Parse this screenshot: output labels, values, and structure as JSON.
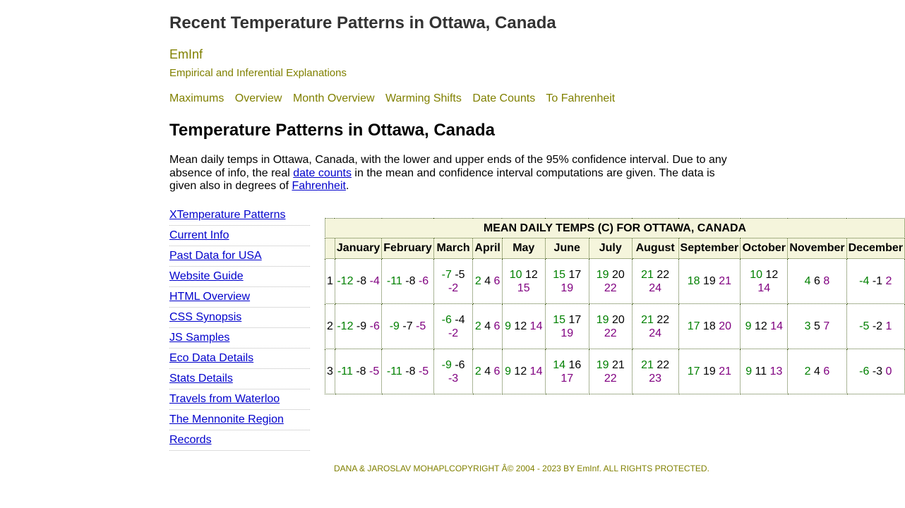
{
  "site": {
    "title": "Recent Temperature Patterns in Ottawa, Canada",
    "brand": "EmInf",
    "tagline": "Empirical and Inferential Explanations"
  },
  "topnav": [
    "Maximums",
    "Overview",
    "Month Overview",
    "Warming Shifts",
    "Date Counts",
    "To Fahrenheit"
  ],
  "main": {
    "heading": "Temperature Patterns in Ottawa, Canada",
    "intro_part1": "Mean daily temps in Ottawa, Canada, with the lower and upper ends of the 95% confidence interval. Due to any absence of info, the real ",
    "intro_link1": "date counts",
    "intro_part2": " in the mean and confidence interval computations are given. The data is given also in degrees of ",
    "intro_link2": "Fahrenheit",
    "intro_part3": "."
  },
  "sidenav": [
    "XTemperature Patterns",
    "Current Info",
    "Past Data for USA",
    "Website Guide",
    "HTML Overview",
    "CSS Synopsis",
    "JS Samples",
    "Eco Data Details",
    "Stats Details",
    "Travels from Waterloo",
    "The Mennonite Region",
    "Records"
  ],
  "table": {
    "caption": "MEAN DAILY TEMPS (C) FOR OTTAWA, CANADA",
    "months": [
      "January",
      "February",
      "March",
      "April",
      "May",
      "June",
      "July",
      "August",
      "September",
      "October",
      "November",
      "December"
    ],
    "rows": [
      {
        "day": "1",
        "cells": [
          [
            "-12",
            "-8",
            "-4"
          ],
          [
            "-11",
            "-8",
            "-6"
          ],
          [
            "-7",
            "-5",
            "-2"
          ],
          [
            "2",
            "4",
            "6"
          ],
          [
            "10",
            "12",
            "15"
          ],
          [
            "15",
            "17",
            "19"
          ],
          [
            "19",
            "20",
            "22"
          ],
          [
            "21",
            "22",
            "24"
          ],
          [
            "18",
            "19",
            "21"
          ],
          [
            "10",
            "12",
            "14"
          ],
          [
            "4",
            "6",
            "8"
          ],
          [
            "-4",
            "-1",
            "2"
          ]
        ]
      },
      {
        "day": "2",
        "cells": [
          [
            "-12",
            "-9",
            "-6"
          ],
          [
            "-9",
            "-7",
            "-5"
          ],
          [
            "-6",
            "-4",
            "-2"
          ],
          [
            "2",
            "4",
            "6"
          ],
          [
            "9",
            "12",
            "14"
          ],
          [
            "15",
            "17",
            "19"
          ],
          [
            "19",
            "20",
            "22"
          ],
          [
            "21",
            "22",
            "24"
          ],
          [
            "17",
            "18",
            "20"
          ],
          [
            "9",
            "12",
            "14"
          ],
          [
            "3",
            "5",
            "7"
          ],
          [
            "-5",
            "-2",
            "1"
          ]
        ]
      },
      {
        "day": "3",
        "cells": [
          [
            "-11",
            "-8",
            "-5"
          ],
          [
            "-11",
            "-8",
            "-5"
          ],
          [
            "-9",
            "-6",
            "-3"
          ],
          [
            "2",
            "4",
            "6"
          ],
          [
            "9",
            "12",
            "14"
          ],
          [
            "14",
            "16",
            "17"
          ],
          [
            "19",
            "21",
            "22"
          ],
          [
            "21",
            "22",
            "23"
          ],
          [
            "17",
            "19",
            "21"
          ],
          [
            "9",
            "11",
            "13"
          ],
          [
            "2",
            "4",
            "6"
          ],
          [
            "-6",
            "-3",
            "0"
          ]
        ]
      }
    ],
    "colors": {
      "lower": "#008000",
      "mean": "#000000",
      "upper": "#800080",
      "header_bg": "#f5f5dc"
    }
  },
  "footer": "DANA & JAROSLAV MOHAPLCOPYRIGHT Â© 2004 - 2023 BY EmInf. ALL RIGHTS PROTECTED."
}
